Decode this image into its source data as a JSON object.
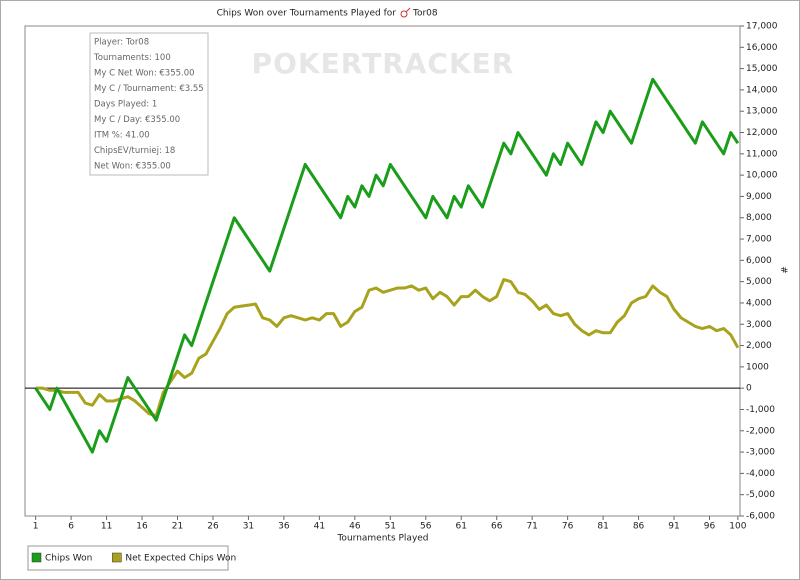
{
  "chart_data": {
    "type": "line",
    "title": "Chips Won over Tournaments Played for",
    "player": "Tor08",
    "watermark": "POKERTRACKER",
    "x_label": "Tournaments Played",
    "y_label": "#",
    "tooltip": [
      "Player: Tor08",
      "Tournaments: 100",
      "My C Net Won: €355.00",
      "My C / Tournament: €3.55",
      "Days Played: 1",
      "My C / Day: €355.00",
      "ITM %: 41.00",
      "ChipsEV/turniej: 18",
      "Net Won: €355.00"
    ],
    "x": [
      1,
      2,
      3,
      4,
      5,
      6,
      7,
      8,
      9,
      10,
      11,
      12,
      13,
      14,
      15,
      16,
      17,
      18,
      19,
      20,
      21,
      22,
      23,
      24,
      25,
      26,
      27,
      28,
      29,
      30,
      31,
      32,
      33,
      34,
      35,
      36,
      37,
      38,
      39,
      40,
      41,
      42,
      43,
      44,
      45,
      46,
      47,
      48,
      49,
      50,
      51,
      52,
      53,
      54,
      55,
      56,
      57,
      58,
      59,
      60,
      61,
      62,
      63,
      64,
      65,
      66,
      67,
      68,
      69,
      70,
      71,
      72,
      73,
      74,
      75,
      76,
      77,
      78,
      79,
      80,
      81,
      82,
      83,
      84,
      85,
      86,
      87,
      88,
      89,
      90,
      91,
      92,
      93,
      94,
      95,
      96,
      97,
      98,
      99,
      100
    ],
    "series": [
      {
        "name": "Chips Won",
        "color": "#1a9e1a",
        "values": [
          0,
          -500,
          -1000,
          0,
          -600,
          -1200,
          -1800,
          -2400,
          -3000,
          -2000,
          -2500,
          -1500,
          -500,
          500,
          0,
          -500,
          -1000,
          -1500,
          -500,
          500,
          1500,
          2500,
          2000,
          3000,
          4000,
          5000,
          6000,
          7000,
          8000,
          7500,
          7000,
          6500,
          6000,
          5500,
          6500,
          7500,
          8500,
          9500,
          10500,
          10000,
          9500,
          9000,
          8500,
          8000,
          9000,
          8500,
          9500,
          9000,
          10000,
          9500,
          10500,
          10000,
          9500,
          9000,
          8500,
          8000,
          9000,
          8500,
          8000,
          9000,
          8500,
          9500,
          9000,
          8500,
          9500,
          10500,
          11500,
          11000,
          12000,
          11500,
          11000,
          10500,
          10000,
          11000,
          10500,
          11500,
          11000,
          10500,
          11500,
          12500,
          12000,
          13000,
          12500,
          12000,
          11500,
          12500,
          13500,
          14500,
          14000,
          13500,
          13000,
          12500,
          12000,
          11500,
          12500,
          12000,
          11500,
          11000,
          12000,
          11500
        ]
      },
      {
        "name": "Net Expected Chips Won",
        "color": "#a8a21c",
        "values": [
          0,
          0,
          -100,
          -100,
          -200,
          -200,
          -200,
          -700,
          -800,
          -300,
          -600,
          -600,
          -500,
          -400,
          -600,
          -900,
          -1200,
          -1300,
          -200,
          300,
          800,
          500,
          700,
          1400,
          1600,
          2200,
          2800,
          3500,
          3800,
          3850,
          3900,
          3950,
          3300,
          3200,
          2900,
          3300,
          3400,
          3300,
          3200,
          3300,
          3200,
          3500,
          3500,
          2900,
          3100,
          3600,
          3800,
          4600,
          4700,
          4500,
          4600,
          4700,
          4700,
          4800,
          4600,
          4700,
          4200,
          4500,
          4300,
          3900,
          4300,
          4300,
          4600,
          4300,
          4100,
          4300,
          5100,
          5000,
          4500,
          4400,
          4100,
          3700,
          3900,
          3500,
          3400,
          3500,
          3000,
          2700,
          2500,
          2700,
          2600,
          2600,
          3100,
          3400,
          4000,
          4200,
          4300,
          4800,
          4500,
          4300,
          3700,
          3300,
          3100,
          2900,
          2800,
          2900,
          2700,
          2800,
          2500,
          1900
        ]
      }
    ],
    "xlim": [
      -0.5,
      100.3
    ],
    "xticks": [
      1,
      6,
      11,
      16,
      21,
      26,
      31,
      36,
      41,
      46,
      51,
      56,
      61,
      66,
      71,
      76,
      81,
      86,
      91,
      96,
      100
    ],
    "ylim": [
      -6000,
      17000
    ],
    "yticks": [
      {
        "value": -6000,
        "label": "-6,000"
      },
      {
        "value": -5000,
        "label": "-5,000"
      },
      {
        "value": -4000,
        "label": "-4,000"
      },
      {
        "value": -3000,
        "label": "-3,000"
      },
      {
        "value": -2000,
        "label": "-2,000"
      },
      {
        "value": -1000,
        "label": "-1,000"
      },
      0,
      1000,
      {
        "value": 2000,
        "label": "2,000"
      },
      {
        "value": 3000,
        "label": "3,000"
      },
      {
        "value": 4000,
        "label": "4,000"
      },
      {
        "value": 5000,
        "label": "5,000"
      },
      {
        "value": 6000,
        "label": "6,000"
      },
      {
        "value": 7000,
        "label": "7,000"
      },
      {
        "value": 8000,
        "label": "8,000"
      },
      {
        "value": 9000,
        "label": "9,000"
      },
      {
        "value": 10000,
        "label": "10,000"
      },
      {
        "value": 11000,
        "label": "11,000"
      },
      {
        "value": 12000,
        "label": "12,000"
      },
      {
        "value": 13000,
        "label": "13,000"
      },
      {
        "value": 14000,
        "label": "14,000"
      },
      {
        "value": 15000,
        "label": "15,000"
      },
      {
        "value": 16000,
        "label": "16,000"
      },
      {
        "value": 17000,
        "label": "17,000"
      }
    ],
    "yticks_side": "right",
    "legend": "bottom-left",
    "grid": false
  }
}
